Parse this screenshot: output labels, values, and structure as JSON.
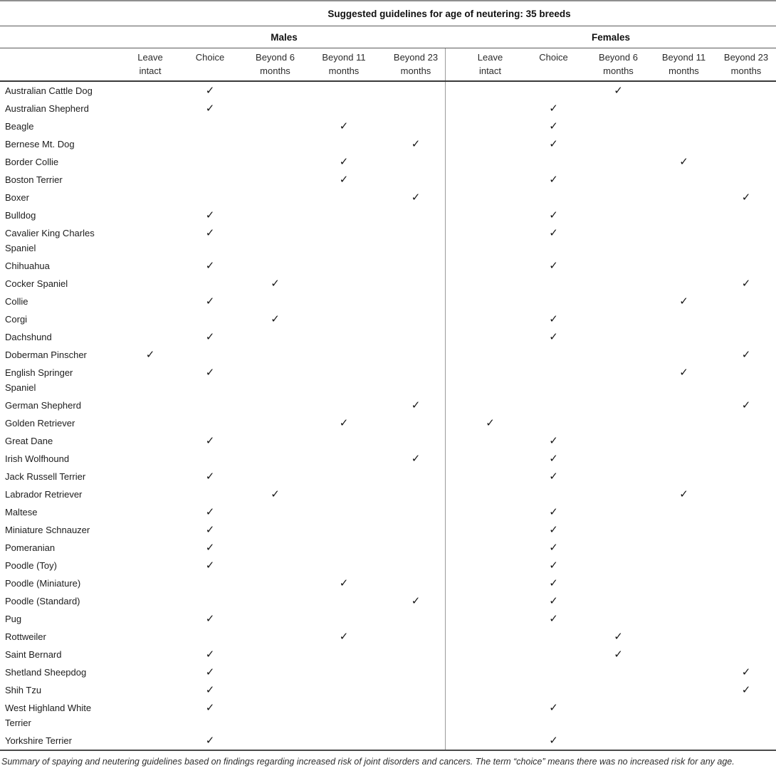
{
  "title": "Suggested guidelines for age of neutering: 35 breeds",
  "groups": {
    "males": "Males",
    "females": "Females"
  },
  "columns": [
    "Leave intact",
    "Choice",
    "Beyond 6 months",
    "Beyond 11 months",
    "Beyond 23 months"
  ],
  "column_keys": [
    "leave_intact",
    "choice",
    "beyond6",
    "beyond11",
    "beyond23"
  ],
  "check_glyph": "✓",
  "colors": {
    "text": "#1d1d1d",
    "rule_light": "#8f8f8f",
    "rule_dark": "#3a3a3a",
    "divider": "#9a9a9a",
    "background": "#ffffff"
  },
  "rows": [
    {
      "breed": "Australian Cattle Dog",
      "male": "choice",
      "female": "beyond6"
    },
    {
      "breed": "Australian Shepherd",
      "male": "choice",
      "female": "choice"
    },
    {
      "breed": "Beagle",
      "male": "beyond11",
      "female": "choice"
    },
    {
      "breed": "Bernese Mt. Dog",
      "male": "beyond23",
      "female": "choice"
    },
    {
      "breed": "Border Collie",
      "male": "beyond11",
      "female": "beyond11"
    },
    {
      "breed": "Boston Terrier",
      "male": "beyond11",
      "female": "choice"
    },
    {
      "breed": "Boxer",
      "male": "beyond23",
      "female": "beyond23"
    },
    {
      "breed": "Bulldog",
      "male": "choice",
      "female": "choice"
    },
    {
      "breed": "Cavalier King Charles Spaniel",
      "male": "choice",
      "female": "choice"
    },
    {
      "breed": "Chihuahua",
      "male": "choice",
      "female": "choice"
    },
    {
      "breed": "Cocker Spaniel",
      "male": "beyond6",
      "female": "beyond23"
    },
    {
      "breed": "Collie",
      "male": "choice",
      "female": "beyond11"
    },
    {
      "breed": "Corgi",
      "male": "beyond6",
      "female": "choice"
    },
    {
      "breed": "Dachshund",
      "male": "choice",
      "female": "choice"
    },
    {
      "breed": "Doberman Pinscher",
      "male": "leave_intact",
      "female": "beyond23"
    },
    {
      "breed": "English Springer Spaniel",
      "male": "choice",
      "female": "beyond11"
    },
    {
      "breed": "German Shepherd",
      "male": "beyond23",
      "female": "beyond23"
    },
    {
      "breed": "Golden Retriever",
      "male": "beyond11",
      "female": "leave_intact"
    },
    {
      "breed": "Great Dane",
      "male": "choice",
      "female": "choice"
    },
    {
      "breed": "Irish Wolfhound",
      "male": "beyond23",
      "female": "choice"
    },
    {
      "breed": "Jack Russell Terrier",
      "male": "choice",
      "female": "choice"
    },
    {
      "breed": "Labrador Retriever",
      "male": "beyond6",
      "female": "beyond11"
    },
    {
      "breed": "Maltese",
      "male": "choice",
      "female": "choice"
    },
    {
      "breed": "Miniature Schnauzer",
      "male": "choice",
      "female": "choice"
    },
    {
      "breed": "Pomeranian",
      "male": "choice",
      "female": "choice"
    },
    {
      "breed": "Poodle (Toy)",
      "male": "choice",
      "female": "choice"
    },
    {
      "breed": "Poodle (Miniature)",
      "male": "beyond11",
      "female": "choice"
    },
    {
      "breed": "Poodle (Standard)",
      "male": "beyond23",
      "female": "choice"
    },
    {
      "breed": "Pug",
      "male": "choice",
      "female": "choice"
    },
    {
      "breed": "Rottweiler",
      "male": "beyond11",
      "female": "beyond6"
    },
    {
      "breed": "Saint Bernard",
      "male": "choice",
      "female": "beyond6"
    },
    {
      "breed": "Shetland Sheepdog",
      "male": "choice",
      "female": "beyond23"
    },
    {
      "breed": "Shih Tzu",
      "male": "choice",
      "female": "beyond23"
    },
    {
      "breed": "West Highland White Terrier",
      "male": "choice",
      "female": "choice"
    },
    {
      "breed": "Yorkshire Terrier",
      "male": "choice",
      "female": "choice"
    }
  ],
  "footnote": "Summary of spaying and neutering guidelines based on findings regarding increased risk of joint disorders and cancers. The term “choice” means there was no increased risk for any age."
}
